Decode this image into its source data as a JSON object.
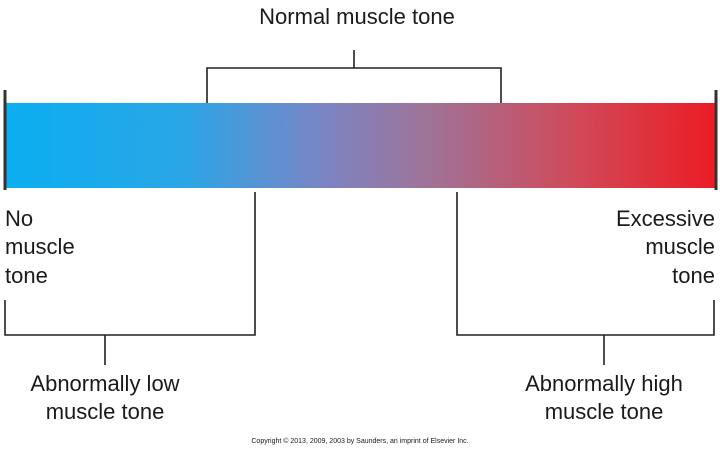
{
  "title": "Normal muscle tone",
  "left_end": [
    "No",
    "muscle",
    "tone"
  ],
  "right_end": [
    "Excessive",
    "muscle",
    "tone"
  ],
  "low_label": [
    "Abnormally low",
    "muscle tone"
  ],
  "high_label": [
    "Abnormally high",
    "muscle tone"
  ],
  "copyright": "Copyright © 2013, 2009, 2003 by Saunders, an imprint of Elsevier Inc."
}
